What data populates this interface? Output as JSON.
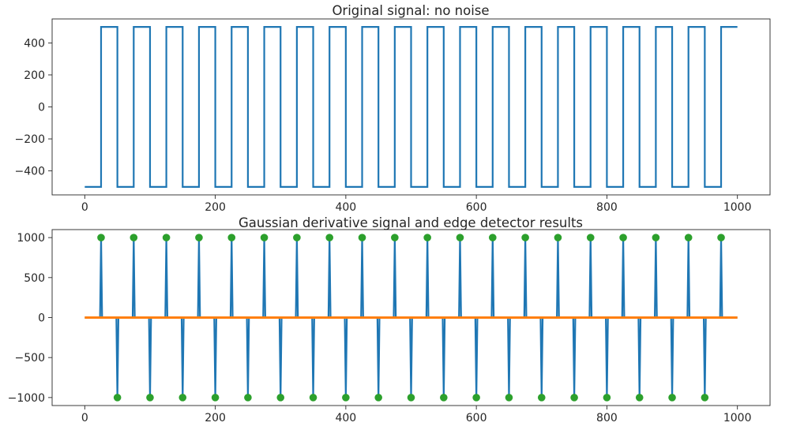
{
  "chart_data": [
    {
      "type": "line",
      "title": "Original signal: no noise",
      "xlabel": "",
      "ylabel": "",
      "xlim": [
        -50,
        1050
      ],
      "ylim": [
        -550,
        550
      ],
      "xticks": [
        0,
        200,
        400,
        600,
        800,
        1000
      ],
      "yticks": [
        -400,
        -200,
        0,
        200,
        400
      ],
      "ytick_labels": [
        "−400",
        "−200",
        "0",
        "200",
        "400"
      ],
      "grid": false,
      "color": "#1f77b4",
      "signal": {
        "x_start": 0,
        "x_end": 1000,
        "low": -500,
        "high": 500,
        "rising_edges": [
          25,
          75,
          125,
          175,
          225,
          275,
          325,
          375,
          425,
          475,
          525,
          575,
          625,
          675,
          725,
          775,
          825,
          875,
          925,
          975
        ],
        "falling_edges": [
          50,
          100,
          150,
          200,
          250,
          300,
          350,
          400,
          450,
          500,
          550,
          600,
          650,
          700,
          750,
          800,
          850,
          900,
          950
        ]
      }
    },
    {
      "type": "line",
      "title": "Gaussian derivative signal and edge detector results",
      "xlabel": "",
      "ylabel": "",
      "xlim": [
        -50,
        1050
      ],
      "ylim": [
        -1100,
        1100
      ],
      "xticks": [
        0,
        200,
        400,
        600,
        800,
        1000
      ],
      "yticks": [
        -1000,
        -500,
        0,
        500,
        1000
      ],
      "ytick_labels": [
        "−1000",
        "−500",
        "0",
        "500",
        "1000"
      ],
      "grid": false,
      "series": [
        {
          "kind": "spikes",
          "color": "#1f77b4",
          "positive_spikes": [
            25,
            75,
            125,
            175,
            225,
            275,
            325,
            375,
            425,
            475,
            525,
            575,
            625,
            675,
            725,
            775,
            825,
            875,
            925,
            975
          ],
          "negative_spikes": [
            50,
            100,
            150,
            200,
            250,
            300,
            350,
            400,
            450,
            500,
            550,
            600,
            650,
            700,
            750,
            800,
            850,
            900,
            950
          ],
          "amplitude": 1000
        },
        {
          "kind": "baseline",
          "color": "#ff7f0e",
          "x": [
            0,
            1000
          ],
          "y": [
            0,
            0
          ]
        },
        {
          "kind": "markers",
          "color": "#2ca02c",
          "points_high": [
            25,
            75,
            125,
            175,
            225,
            275,
            325,
            375,
            425,
            475,
            525,
            575,
            625,
            675,
            725,
            775,
            825,
            875,
            925,
            975
          ],
          "points_low": [
            50,
            100,
            150,
            200,
            250,
            300,
            350,
            400,
            450,
            500,
            550,
            600,
            650,
            700,
            750,
            800,
            850,
            900,
            950
          ],
          "high_value": 1000,
          "low_value": -1000
        }
      ]
    }
  ]
}
